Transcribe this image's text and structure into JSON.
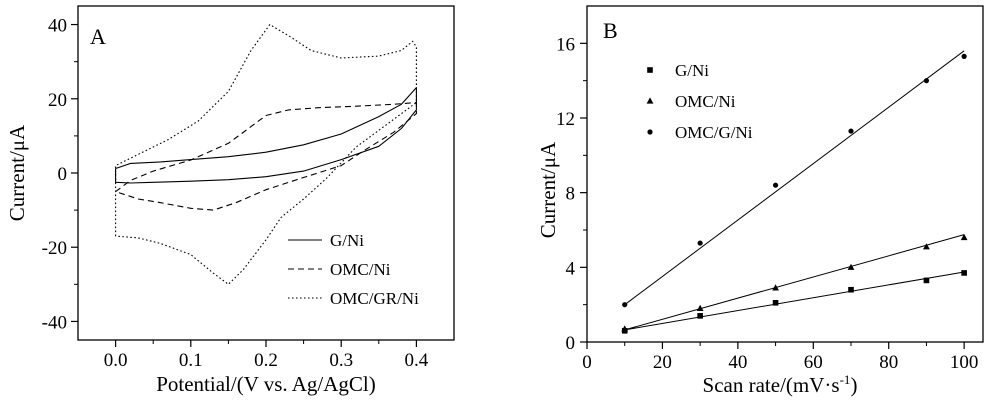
{
  "chart_data": [
    {
      "type": "line",
      "panel_label": "A",
      "xlabel": "Potential/(V vs. Ag/AgCl)",
      "ylabel": "Current/μA",
      "xlim": [
        -0.05,
        0.45
      ],
      "ylim": [
        -45,
        45
      ],
      "xticks": [
        0.0,
        0.1,
        0.2,
        0.3,
        0.4
      ],
      "xtick_labels": [
        "0.0",
        "0.1",
        "0.2",
        "0.3",
        "0.4"
      ],
      "yticks": [
        -40,
        -20,
        0,
        20,
        40
      ],
      "ytick_labels": [
        "-40",
        "-20",
        "0",
        "20",
        "40"
      ],
      "grid": false,
      "legend_position": "bottom-right",
      "series": [
        {
          "name": "G/Ni",
          "dash": "solid",
          "color": "#000000",
          "points": [
            [
              0.0,
              1.2
            ],
            [
              0.02,
              2.6
            ],
            [
              0.06,
              3.0
            ],
            [
              0.1,
              3.6
            ],
            [
              0.15,
              4.4
            ],
            [
              0.2,
              5.6
            ],
            [
              0.25,
              7.6
            ],
            [
              0.3,
              10.5
            ],
            [
              0.35,
              15.2
            ],
            [
              0.38,
              18.5
            ],
            [
              0.4,
              23.0
            ],
            [
              0.4,
              17.0
            ],
            [
              0.38,
              12.0
            ],
            [
              0.35,
              7.2
            ],
            [
              0.3,
              3.6
            ],
            [
              0.25,
              0.5
            ],
            [
              0.2,
              -1.0
            ],
            [
              0.15,
              -1.8
            ],
            [
              0.1,
              -2.2
            ],
            [
              0.05,
              -2.5
            ],
            [
              0.02,
              -2.7
            ],
            [
              0.0,
              -2.5
            ],
            [
              0.0,
              1.2
            ]
          ]
        },
        {
          "name": "OMC/Ni",
          "dash": "dashed",
          "color": "#000000",
          "points": [
            [
              0.0,
              -5.0
            ],
            [
              0.02,
              -2.0
            ],
            [
              0.05,
              0.5
            ],
            [
              0.1,
              3.5
            ],
            [
              0.15,
              8.0
            ],
            [
              0.18,
              12.5
            ],
            [
              0.2,
              15.5
            ],
            [
              0.23,
              17.0
            ],
            [
              0.27,
              17.6
            ],
            [
              0.32,
              18.0
            ],
            [
              0.37,
              18.5
            ],
            [
              0.4,
              19.0
            ],
            [
              0.4,
              16.0
            ],
            [
              0.37,
              11.0
            ],
            [
              0.33,
              6.0
            ],
            [
              0.3,
              2.0
            ],
            [
              0.25,
              -1.2
            ],
            [
              0.2,
              -4.5
            ],
            [
              0.16,
              -8.0
            ],
            [
              0.13,
              -10.0
            ],
            [
              0.1,
              -9.5
            ],
            [
              0.06,
              -8.0
            ],
            [
              0.03,
              -7.0
            ],
            [
              0.0,
              -5.0
            ]
          ]
        },
        {
          "name": "OMC/GR/Ni",
          "dash": "dotted",
          "color": "#000000",
          "points": [
            [
              0.0,
              -17.0
            ],
            [
              0.0,
              2.0
            ],
            [
              0.03,
              5.0
            ],
            [
              0.07,
              9.0
            ],
            [
              0.11,
              14.0
            ],
            [
              0.15,
              22.0
            ],
            [
              0.18,
              33.0
            ],
            [
              0.205,
              40.0
            ],
            [
              0.23,
              37.0
            ],
            [
              0.26,
              33.0
            ],
            [
              0.3,
              31.0
            ],
            [
              0.35,
              31.5
            ],
            [
              0.38,
              33.0
            ],
            [
              0.395,
              35.5
            ],
            [
              0.4,
              34.0
            ],
            [
              0.4,
              19.0
            ],
            [
              0.36,
              13.0
            ],
            [
              0.32,
              7.0
            ],
            [
              0.28,
              -1.5
            ],
            [
              0.25,
              -7.0
            ],
            [
              0.22,
              -12.0
            ],
            [
              0.2,
              -18.0
            ],
            [
              0.17,
              -26.0
            ],
            [
              0.15,
              -30.0
            ],
            [
              0.13,
              -27.0
            ],
            [
              0.1,
              -22.0
            ],
            [
              0.06,
              -19.0
            ],
            [
              0.03,
              -17.5
            ],
            [
              0.0,
              -17.0
            ]
          ]
        }
      ]
    },
    {
      "type": "scatter",
      "panel_label": "B",
      "xlabel": "Scan rate/(mV·s",
      "xlabel_superscript": "-1",
      "xlabel_suffix": ")",
      "ylabel": "Current/μA",
      "xlim": [
        0,
        105
      ],
      "ylim": [
        0,
        18
      ],
      "xticks": [
        0,
        20,
        40,
        60,
        80,
        100
      ],
      "xtick_labels": [
        "0",
        "20",
        "40",
        "60",
        "80",
        "100"
      ],
      "yticks": [
        0,
        4,
        8,
        12,
        16
      ],
      "ytick_labels": [
        "0",
        "4",
        "8",
        "12",
        "16"
      ],
      "grid": false,
      "legend_position": "top-left",
      "x": [
        10,
        30,
        50,
        70,
        90,
        100
      ],
      "series": [
        {
          "name": "G/Ni",
          "marker": "square",
          "values": [
            0.6,
            1.4,
            2.1,
            2.8,
            3.3,
            3.7
          ],
          "fit": [
            [
              10,
              0.65
            ],
            [
              100,
              3.75
            ]
          ]
        },
        {
          "name": "OMC/Ni",
          "marker": "triangle",
          "values": [
            0.7,
            1.8,
            2.9,
            4.0,
            5.1,
            5.6
          ],
          "fit": [
            [
              10,
              0.65
            ],
            [
              100,
              5.75
            ]
          ]
        },
        {
          "name": "OMC/G/Ni",
          "marker": "circle",
          "values": [
            2.0,
            5.3,
            8.4,
            11.3,
            14.0,
            15.3
          ],
          "fit": [
            [
              10,
              2.0
            ],
            [
              100,
              15.6
            ]
          ]
        }
      ]
    }
  ]
}
